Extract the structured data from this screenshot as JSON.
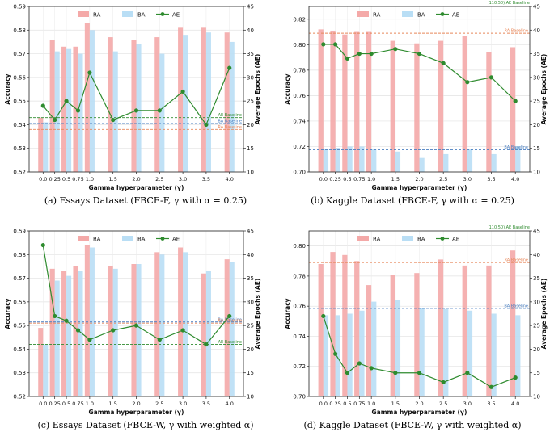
{
  "chart_data": [
    {
      "type": "bar+line",
      "title": "",
      "caption": "(a)  Essays Dataset (FBCE-F, γ with α = 0.25)",
      "categories": [
        "0.0",
        "0.25",
        "0.5",
        "0.75",
        "1.0",
        "1.5",
        "2.0",
        "2.5",
        "3.0",
        "3.5",
        "4.0"
      ],
      "x": [
        0.0,
        0.25,
        0.5,
        0.75,
        1.0,
        1.5,
        2.0,
        2.5,
        3.0,
        3.5,
        4.0
      ],
      "xlabel": "Gamma hyperparameter (γ)",
      "ylabel": "Accuracy",
      "y2label": "Average Epochs (AE)",
      "ylim": [
        0.52,
        0.59
      ],
      "yticks": [
        "0.52",
        "0.53",
        "0.54",
        "0.55",
        "0.56",
        "0.57",
        "0.58",
        "0.59"
      ],
      "y2lim": [
        10,
        45
      ],
      "y2ticks": [
        "10",
        "15",
        "20",
        "25",
        "30",
        "35",
        "40",
        "45"
      ],
      "legend": [
        "RA",
        "BA",
        "AE"
      ],
      "legend_position": "top-left",
      "series": [
        {
          "name": "RA",
          "kind": "bar",
          "color": "#f4a9a8",
          "values": [
            0.543,
            0.576,
            0.573,
            0.573,
            0.583,
            0.577,
            0.576,
            0.577,
            0.581,
            0.581,
            0.579
          ]
        },
        {
          "name": "BA",
          "kind": "bar",
          "color": "#b9def5",
          "values": [
            0.541,
            0.571,
            0.572,
            0.57,
            0.58,
            0.571,
            0.574,
            0.57,
            0.578,
            0.579,
            0.575
          ]
        },
        {
          "name": "AE",
          "kind": "line",
          "axis": "right",
          "color": "#2e8b2e",
          "values": [
            24,
            21,
            25,
            23,
            31,
            21,
            23,
            23,
            27,
            20,
            32
          ]
        }
      ],
      "baselines": [
        {
          "label": "AE Baseline",
          "axis": "right",
          "value": 21.5,
          "color": "#2e8b2e"
        },
        {
          "label": "BA Baseline",
          "axis": "left",
          "value": 0.5405,
          "color": "#4a7fc1"
        },
        {
          "label": "RA Baseline",
          "axis": "left",
          "value": 0.538,
          "color": "#e8875a"
        }
      ]
    },
    {
      "type": "bar+line",
      "title": "",
      "caption": "(b)  Kaggle Dataset (FBCE-F, γ with α = 0.25)",
      "categories": [
        "0.0",
        "0.25",
        "0.5",
        "0.75",
        "1.0",
        "1.5",
        "2.0",
        "2.5",
        "3.0",
        "3.5",
        "4.0"
      ],
      "x": [
        0.0,
        0.25,
        0.5,
        0.75,
        1.0,
        1.5,
        2.0,
        2.5,
        3.0,
        3.5,
        4.0
      ],
      "xlabel": "Gamma hyperparameter (γ)",
      "ylabel": "Accuracy",
      "y2label": "Average Epochs (AE)",
      "ylim": [
        0.7,
        0.83
      ],
      "yticks": [
        "0.70",
        "0.72",
        "0.74",
        "0.76",
        "0.78",
        "0.80",
        "0.82"
      ],
      "y2lim": [
        10,
        45
      ],
      "y2ticks": [
        "10",
        "15",
        "20",
        "25",
        "30",
        "35",
        "40",
        "45"
      ],
      "legend": [
        "RA",
        "BA",
        "AE"
      ],
      "legend_position": "top-left",
      "series": [
        {
          "name": "RA",
          "kind": "bar",
          "color": "#f4a9a8",
          "values": [
            0.812,
            0.811,
            0.808,
            0.81,
            0.81,
            0.803,
            0.801,
            0.803,
            0.807,
            0.794,
            0.798
          ]
        },
        {
          "name": "BA",
          "kind": "bar",
          "color": "#b9def5",
          "values": [
            0.718,
            0.719,
            0.72,
            0.72,
            0.718,
            0.716,
            0.711,
            0.714,
            0.718,
            0.714,
            0.72
          ]
        },
        {
          "name": "AE",
          "kind": "line",
          "axis": "right",
          "color": "#2e8b2e",
          "values": [
            37,
            37,
            34,
            35,
            35,
            36,
            35,
            33,
            29,
            30,
            25
          ]
        }
      ],
      "baselines": [
        {
          "label": "(110.50) AE Baseline",
          "axis": "right",
          "value": 110.5,
          "color": "#2e8b2e",
          "offscale": true
        },
        {
          "label": "RA Baseline",
          "axis": "left",
          "value": 0.809,
          "color": "#e8875a"
        },
        {
          "label": "BA Baseline",
          "axis": "left",
          "value": 0.7175,
          "color": "#4a7fc1"
        }
      ]
    },
    {
      "type": "bar+line",
      "title": "",
      "caption": "(c)  Essays Dataset (FBCE-W, γ with weighted α)",
      "categories": [
        "0.0",
        "0.25",
        "0.5",
        "0.75",
        "1.0",
        "1.5",
        "2.0",
        "2.5",
        "3.0",
        "3.5",
        "4.0"
      ],
      "x": [
        0.0,
        0.25,
        0.5,
        0.75,
        1.0,
        1.5,
        2.0,
        2.5,
        3.0,
        3.5,
        4.0
      ],
      "xlabel": "Gamma hyperparameter (γ)",
      "ylabel": "Accuracy",
      "y2label": "Average Epochs (AE)",
      "ylim": [
        0.52,
        0.59
      ],
      "yticks": [
        "0.52",
        "0.53",
        "0.54",
        "0.55",
        "0.56",
        "0.57",
        "0.58",
        "0.59"
      ],
      "y2lim": [
        10,
        45
      ],
      "y2ticks": [
        "10",
        "15",
        "20",
        "25",
        "30",
        "35",
        "40",
        "45"
      ],
      "legend": [
        "RA",
        "BA",
        "AE"
      ],
      "legend_position": "top-left",
      "series": [
        {
          "name": "RA",
          "kind": "bar",
          "color": "#f4a9a8",
          "values": [
            0.549,
            0.574,
            0.573,
            0.575,
            0.584,
            0.575,
            0.576,
            0.581,
            0.583,
            0.572,
            0.578
          ]
        },
        {
          "name": "BA",
          "kind": "bar",
          "color": "#b9def5",
          "values": [
            0.542,
            0.569,
            0.571,
            0.573,
            0.583,
            0.574,
            0.576,
            0.58,
            0.581,
            0.573,
            0.577
          ]
        },
        {
          "name": "AE",
          "kind": "line",
          "axis": "right",
          "color": "#2e8b2e",
          "values": [
            42,
            27,
            26,
            24,
            22,
            24,
            25,
            22,
            24,
            21,
            27
          ]
        }
      ],
      "baselines": [
        {
          "label": "BA Baseline",
          "axis": "left",
          "value": 0.5515,
          "color": "#4a7fc1"
        },
        {
          "label": "RA Baseline",
          "axis": "left",
          "value": 0.551,
          "color": "#e8875a"
        },
        {
          "label": "AE Baseline",
          "axis": "right",
          "value": 21,
          "color": "#2e8b2e"
        }
      ]
    },
    {
      "type": "bar+line",
      "title": "",
      "caption": "(d)  Kaggle Dataset (FBCE-W, γ with weighted α)",
      "categories": [
        "0.0",
        "0.25",
        "0.5",
        "0.75",
        "1.0",
        "1.5",
        "2.0",
        "2.5",
        "3.0",
        "3.5",
        "4.0"
      ],
      "x": [
        0.0,
        0.25,
        0.5,
        0.75,
        1.0,
        1.5,
        2.0,
        2.5,
        3.0,
        3.5,
        4.0
      ],
      "xlabel": "Gamma hyperparameter (γ)",
      "ylabel": "Accuracy",
      "y2label": "Average Epochs (AE)",
      "ylim": [
        0.7,
        0.81
      ],
      "yticks": [
        "0.70",
        "0.72",
        "0.74",
        "0.76",
        "0.78",
        "0.80"
      ],
      "y2lim": [
        10,
        45
      ],
      "y2ticks": [
        "10",
        "15",
        "20",
        "25",
        "30",
        "35",
        "40",
        "45"
      ],
      "legend": [
        "RA",
        "BA",
        "AE"
      ],
      "legend_position": "top-left",
      "series": [
        {
          "name": "RA",
          "kind": "bar",
          "color": "#f4a9a8",
          "values": [
            0.788,
            0.796,
            0.794,
            0.79,
            0.774,
            0.781,
            0.782,
            0.791,
            0.787,
            0.787,
            0.797
          ]
        },
        {
          "name": "BA",
          "kind": "bar",
          "color": "#b9def5",
          "values": [
            0.754,
            0.754,
            0.755,
            0.757,
            0.763,
            0.764,
            0.759,
            0.758,
            0.757,
            0.755,
            0.754
          ]
        },
        {
          "name": "AE",
          "kind": "line",
          "axis": "right",
          "color": "#2e8b2e",
          "values": [
            27,
            19,
            15,
            17,
            16,
            15,
            15,
            13,
            15,
            12,
            14
          ]
        }
      ],
      "baselines": [
        {
          "label": "(110.50) AE Baseline",
          "axis": "right",
          "value": 110.5,
          "color": "#2e8b2e",
          "offscale": true
        },
        {
          "label": "RA Baseline",
          "axis": "left",
          "value": 0.789,
          "color": "#e8875a"
        },
        {
          "label": "BA Baseline",
          "axis": "left",
          "value": 0.7585,
          "color": "#4a7fc1"
        }
      ]
    }
  ]
}
